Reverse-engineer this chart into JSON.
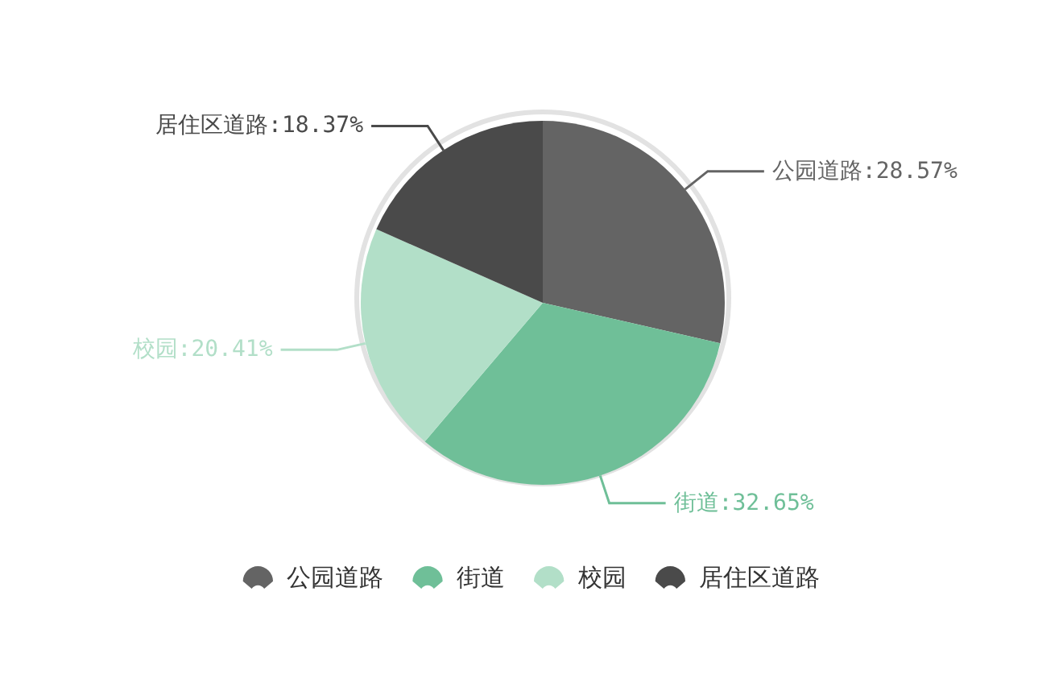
{
  "chart_data": {
    "type": "pie",
    "categories": [
      "公园道路",
      "街道",
      "校园",
      "居住区道路"
    ],
    "values": [
      28.57,
      32.65,
      20.41,
      18.37
    ],
    "colors": [
      "#646464",
      "#6fbf98",
      "#b2dfc8",
      "#4a4a4a"
    ],
    "value_labels": [
      "公园道路:28.57%",
      "街道:32.65%",
      "校园:20.41%",
      "居住区道路:18.37%"
    ],
    "legend": "bottom"
  }
}
